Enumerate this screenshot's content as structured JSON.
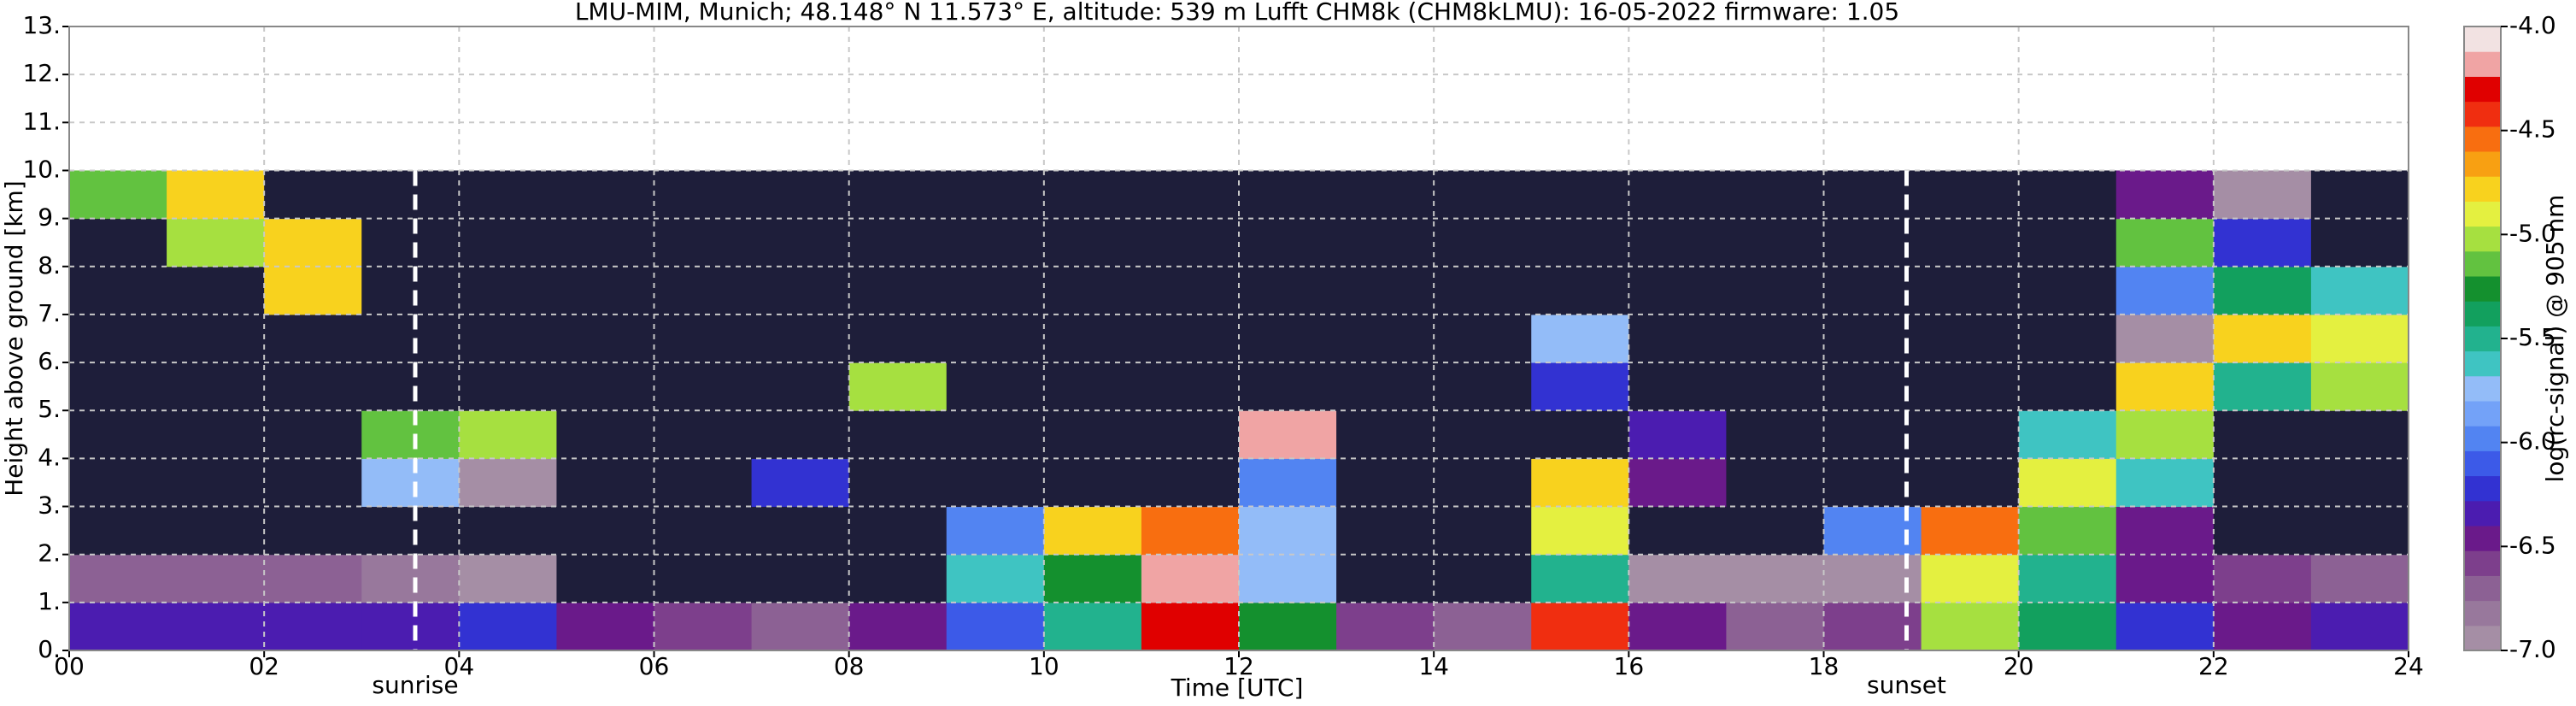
{
  "chart_data": {
    "type": "heatmap",
    "title": "LMU-MIM, Munich; 48.148° N 11.573° E, altitude: 539 m    Lufft CHM8k (CHM8kLMU): 16-05-2022    firmware: 1.05",
    "x_label": "Time [UTC]",
    "y_label": "Height above ground [km]",
    "colorbar_label": "log(rc-signal) @ 905 nm",
    "xlim": [
      0,
      24
    ],
    "xticks": [
      {
        "value": 0,
        "label": "00"
      },
      {
        "value": 2,
        "label": "02"
      },
      {
        "value": 4,
        "label": "04"
      },
      {
        "value": 6,
        "label": "06"
      },
      {
        "value": 8,
        "label": "08"
      },
      10,
      12,
      14,
      16,
      18,
      20,
      22,
      24
    ],
    "ylim": [
      0,
      13
    ],
    "yticks": [
      {
        "value": 0,
        "label": "0."
      },
      {
        "value": 1,
        "label": "1."
      },
      {
        "value": 2,
        "label": "2."
      },
      {
        "value": 3,
        "label": "3."
      },
      {
        "value": 4,
        "label": "4."
      },
      {
        "value": 5,
        "label": "5."
      },
      {
        "value": 6,
        "label": "6."
      },
      {
        "value": 7,
        "label": "7."
      },
      {
        "value": 8,
        "label": "8."
      },
      {
        "value": 9,
        "label": "9."
      },
      {
        "value": 10,
        "label": "10."
      },
      {
        "value": 11,
        "label": "11."
      },
      {
        "value": 12,
        "label": "12."
      },
      {
        "value": 13,
        "label": "13."
      }
    ],
    "zlim": [
      -7,
      -4
    ],
    "zticks": [
      {
        "value": -4,
        "label": "-4.0"
      },
      -4.5,
      {
        "value": -5,
        "label": "-5.0"
      },
      -5.5,
      {
        "value": -6,
        "label": "-6.0"
      },
      -6.5,
      {
        "value": -7,
        "label": "-7.0"
      }
    ],
    "colors": [
      "#a58ea5",
      "#98789c",
      "#8c6194",
      "#7d3f8c",
      "#6a1a8a",
      "#4b1cb0",
      "#3232d2",
      "#3c5ae8",
      "#5284f2",
      "#73a2f8",
      "#93bcf8",
      "#3fc4c2",
      "#22b28e",
      "#12a05e",
      "#14902e",
      "#62c240",
      "#a6e040",
      "#e4f040",
      "#f8d21e",
      "#f8a012",
      "#f86e10",
      "#f02e10",
      "#e00000",
      "#f0a4a4",
      "#f2e2e2"
    ],
    "under_color": "#1e1e3a",
    "grid": true,
    "grid_color": "#c8c8c8",
    "x_edges": [
      0,
      1,
      2,
      3,
      4,
      5,
      6,
      7,
      8,
      9,
      10,
      11,
      12,
      13,
      14,
      15,
      16,
      17,
      18,
      19,
      20,
      21,
      22,
      23,
      24
    ],
    "y_edges": [
      0,
      1,
      2,
      3,
      4,
      5,
      6,
      7,
      8,
      9,
      10
    ],
    "z": [
      [
        -6.3,
        -6.3,
        -6.3,
        -6.3,
        -6.2,
        -6.4,
        -6.6,
        -6.7,
        -6.5,
        -6.1,
        -5.5,
        -4.3,
        -5.3,
        -6.6,
        -6.7,
        -4.4,
        -6.5,
        -6.7,
        -6.6,
        -5.0,
        -5.4,
        -6.2,
        -6.4,
        -6.3
      ],
      [
        -6.7,
        -6.7,
        -6.7,
        -6.8,
        -6.9,
        -7.3,
        -7.3,
        -7.3,
        -7.3,
        -5.6,
        -5.3,
        -4.2,
        -5.8,
        -7.3,
        -7.3,
        -5.5,
        -6.9,
        -6.9,
        -6.9,
        -4.9,
        -5.5,
        -6.4,
        -6.6,
        -6.7
      ],
      [
        -7.3,
        -7.3,
        -7.3,
        -7.3,
        -7.3,
        -7.3,
        -7.3,
        -7.3,
        -7.3,
        -6.0,
        -4.8,
        -4.6,
        -5.8,
        -7.3,
        -7.3,
        -4.9,
        -7.3,
        -7.3,
        -6.0,
        -4.6,
        -5.1,
        -6.5,
        -7.3,
        -7.3
      ],
      [
        -7.3,
        -7.3,
        -7.3,
        -5.8,
        -7.0,
        -7.3,
        -7.3,
        -6.2,
        -7.3,
        -7.3,
        -7.3,
        -7.3,
        -6.0,
        -7.3,
        -7.3,
        -4.8,
        -6.5,
        -7.3,
        -7.3,
        -7.3,
        -4.9,
        -5.6,
        -7.3,
        -7.3
      ],
      [
        -7.3,
        -7.3,
        -7.3,
        -5.2,
        -5.0,
        -7.3,
        -7.3,
        -7.3,
        -7.3,
        -7.3,
        -7.3,
        -7.3,
        -4.2,
        -7.3,
        -7.3,
        -7.3,
        -6.3,
        -7.3,
        -7.3,
        -7.3,
        -5.6,
        -5.0,
        -7.3,
        -7.3
      ],
      [
        -7.3,
        -7.3,
        -7.3,
        -7.3,
        -7.3,
        -7.3,
        -7.3,
        -7.3,
        -5.0,
        -7.3,
        -7.3,
        -7.3,
        -7.3,
        -7.3,
        -7.3,
        -6.2,
        -7.3,
        -7.3,
        -7.3,
        -7.3,
        -7.3,
        -4.8,
        -5.5,
        -5.0
      ],
      [
        -7.3,
        -7.3,
        -7.3,
        -7.3,
        -7.3,
        -7.3,
        -7.3,
        -7.3,
        -7.3,
        -7.3,
        -7.3,
        -7.3,
        -7.3,
        -7.3,
        -7.3,
        -5.8,
        -7.3,
        -7.3,
        -7.3,
        -7.3,
        -7.3,
        -7.0,
        -4.8,
        -4.9
      ],
      [
        -7.3,
        -7.3,
        -4.8,
        -7.3,
        -7.3,
        -7.3,
        -7.3,
        -7.3,
        -7.3,
        -7.3,
        -7.3,
        -7.3,
        -7.3,
        -7.3,
        -7.3,
        -7.3,
        -7.3,
        -7.3,
        -7.3,
        -7.3,
        -7.3,
        -6.0,
        -5.4,
        -5.6
      ],
      [
        -7.3,
        -5.0,
        -4.8,
        -7.3,
        -7.3,
        -7.3,
        -7.3,
        -7.3,
        -7.3,
        -7.3,
        -7.3,
        -7.3,
        -7.3,
        -7.3,
        -7.3,
        -7.3,
        -7.3,
        -7.3,
        -7.3,
        -7.3,
        -7.3,
        -5.2,
        -6.2,
        -7.3
      ],
      [
        -5.2,
        -4.8,
        -7.3,
        -7.3,
        -7.3,
        -7.3,
        -7.3,
        -7.3,
        -7.3,
        -7.3,
        -7.3,
        -7.3,
        -7.3,
        -7.3,
        -7.3,
        -7.3,
        -7.3,
        -7.3,
        -7.3,
        -7.3,
        -7.3,
        -6.5,
        -7.0,
        -7.3
      ]
    ],
    "annotations": [
      {
        "text": "sunrise",
        "x": 3.55
      },
      {
        "text": "sunset",
        "x": 18.85
      }
    ]
  }
}
